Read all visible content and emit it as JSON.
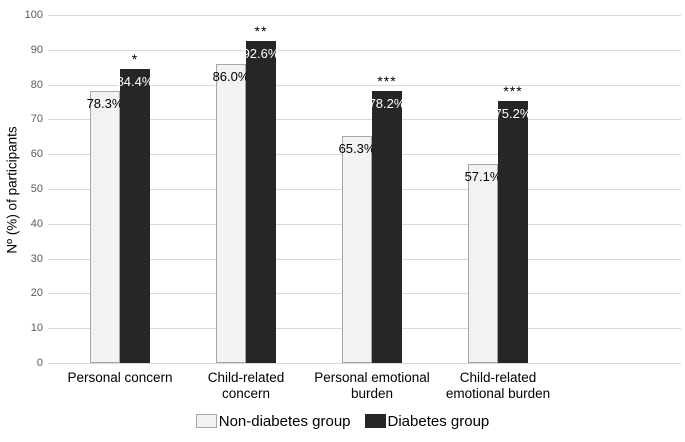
{
  "chart_data": {
    "type": "bar",
    "title": "",
    "ylabel": "Nº (%) of participants",
    "xlabel": "",
    "ylim": [
      0,
      100
    ],
    "yticks": [
      0,
      10,
      20,
      30,
      40,
      50,
      60,
      70,
      80,
      90,
      100
    ],
    "grid": true,
    "legend_position": "bottom",
    "categories": [
      "Personal concern",
      "Child-related concern",
      "Personal emotional burden",
      "Child-related emotional burden"
    ],
    "series": [
      {
        "name": "Non-diabetes group",
        "values": [
          78.3,
          86.0,
          65.3,
          57.1
        ],
        "labels": [
          "78.3%",
          "86.0%",
          "65.3%",
          "57.1%"
        ],
        "fill": "#f2f2f2",
        "border": "#a6a6a6",
        "label_color": "#000000"
      },
      {
        "name": "Diabetes group",
        "values": [
          84.4,
          92.6,
          78.2,
          75.2
        ],
        "labels": [
          "84.4%",
          "92.6%",
          "78.2%",
          "75.2%"
        ],
        "fill": "#262626",
        "border": "#262626",
        "label_color": "#ffffff"
      }
    ],
    "significance_markers": [
      "*",
      "**",
      "***",
      "***"
    ],
    "colors": {
      "gridline": "#d9d9d9",
      "axis_line": "#d9d9d9",
      "tick_label": "#595959",
      "category_label": "#000000",
      "background": "#ffffff"
    }
  }
}
